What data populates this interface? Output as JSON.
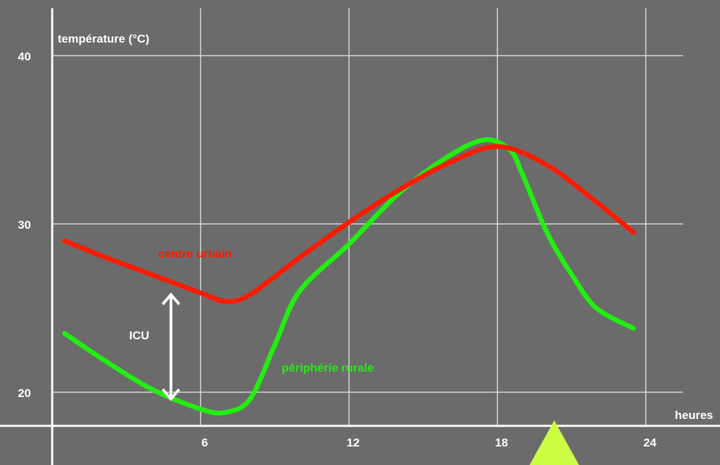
{
  "colors": {
    "background": "#6b6b6b",
    "axis": "#ffffff",
    "grid": "#d9d9d9",
    "urban": "#ff1a00",
    "rural": "#22ee11",
    "marker": "#ccff44"
  },
  "chart_data": {
    "type": "line",
    "ylabel": "température (°C)",
    "xlabel": "heures",
    "xlim": [
      0,
      24
    ],
    "ylim": [
      18,
      40
    ],
    "x_ticks": [
      6,
      12,
      18,
      24
    ],
    "y_ticks": [
      20,
      30,
      40
    ],
    "grid": true,
    "series": [
      {
        "name": "centre urbain",
        "color": "#ff1a00",
        "x": [
          0.5,
          2,
          4,
          6,
          7,
          8,
          10,
          12,
          14,
          16,
          18,
          20,
          22,
          23.5
        ],
        "y": [
          29.0,
          28.1,
          27.0,
          25.9,
          25.4,
          25.8,
          28.0,
          30.1,
          32.0,
          33.6,
          34.6,
          33.5,
          31.3,
          29.5
        ]
      },
      {
        "name": "périphérie rurale",
        "color": "#22ee11",
        "x": [
          0.5,
          2,
          4,
          6,
          7,
          8,
          9,
          10,
          12,
          14,
          16,
          17.5,
          18.5,
          19,
          20,
          21,
          22,
          23.5
        ],
        "y": [
          23.5,
          22.0,
          20.2,
          19.0,
          18.8,
          19.6,
          22.8,
          26.0,
          28.8,
          31.8,
          34.0,
          35.0,
          34.4,
          33.0,
          29.5,
          27.0,
          25.0,
          23.8
        ]
      }
    ],
    "annotations": [
      {
        "text": "ICU",
        "type": "double-arrow",
        "x": 4.8,
        "y_from": 19.6,
        "y_to": 25.8
      }
    ],
    "marker": {
      "type": "triangle",
      "x": 20.3
    }
  }
}
